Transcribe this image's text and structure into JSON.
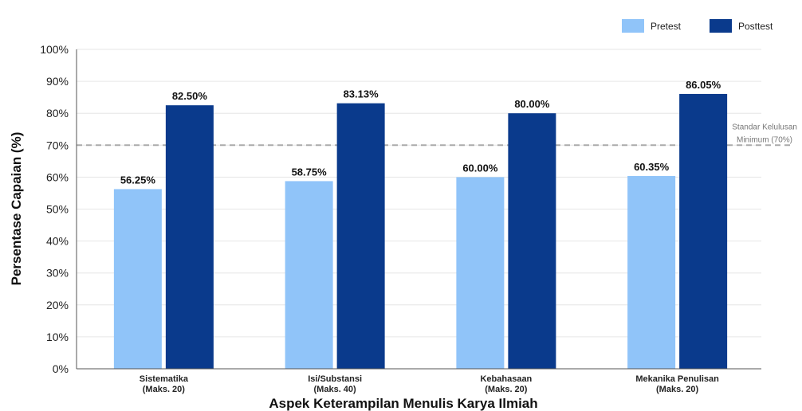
{
  "chart_data": {
    "type": "bar",
    "title": "",
    "xlabel": "Aspek Keterampilan Menulis Karya Ilmiah",
    "ylabel": "Persentase Capaian (%)",
    "ylim": [
      0,
      100
    ],
    "yticks": [
      "0%",
      "10%",
      "20%",
      "30%",
      "40%",
      "50%",
      "60%",
      "70%",
      "80%",
      "90%",
      "100%"
    ],
    "categories": [
      {
        "name": "Sistematika",
        "sub": "(Maks. 20)"
      },
      {
        "name": "Isi/Substansi",
        "sub": "(Maks. 40)"
      },
      {
        "name": "Kebahasaan",
        "sub": "(Maks. 20)"
      },
      {
        "name": "Mekanika Penulisan",
        "sub": "(Maks. 20)"
      }
    ],
    "series": [
      {
        "name": "Pretest",
        "color": "#90c4f9",
        "values": [
          56.25,
          58.75,
          60.0,
          60.35
        ],
        "labels": [
          "56.25%",
          "58.75%",
          "60.00%",
          "60.35%"
        ]
      },
      {
        "name": "Posttest",
        "color": "#0a3a8c",
        "values": [
          82.5,
          83.13,
          80.0,
          86.05
        ],
        "labels": [
          "82.50%",
          "83.13%",
          "80.00%",
          "86.05%"
        ]
      }
    ],
    "reference_line": {
      "value": 70,
      "label_line1": "Standar Kelulusan",
      "label_line2": "Minimum (70%)",
      "color": "#aaaaaa",
      "style": "dashed"
    },
    "grid": "horizontal",
    "legend_position": "top-right"
  }
}
